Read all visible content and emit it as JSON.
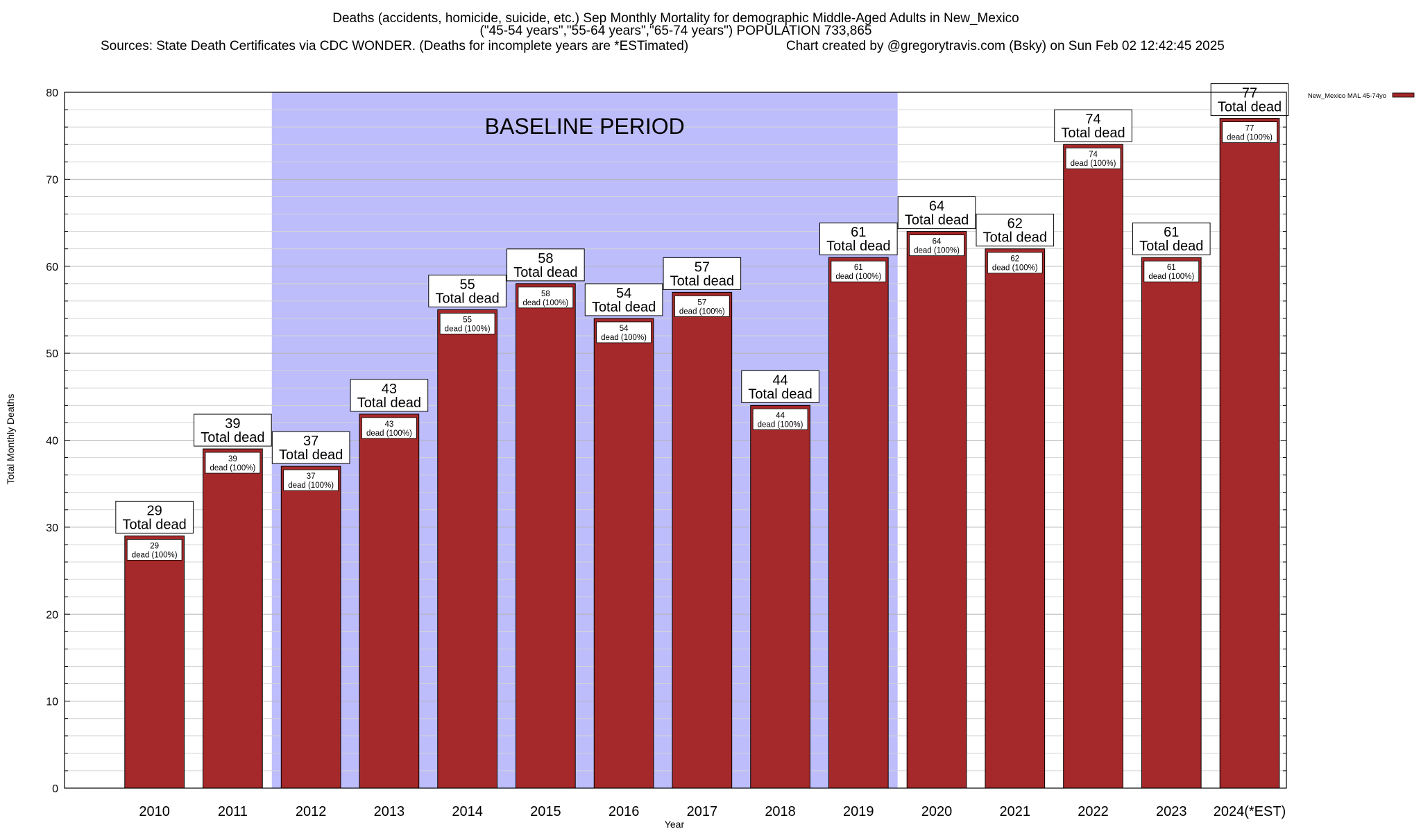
{
  "chart_data": {
    "type": "bar",
    "title_lines": [
      "Deaths (accidents, homicide, suicide, etc.) Sep Monthly Mortality for demographic Middle-Aged Adults in New_Mexico",
      "(\"45-54 years\",\"55-64 years\",\"65-74 years\") POPULATION 733,865"
    ],
    "sources_text": "Sources: State Death Certificates via CDC WONDER. (Deaths for incomplete years are *ESTimated)",
    "credit_text": "Chart created by @gregorytravis.com (Bsky) on Sun Feb 02 12:42:45 2025",
    "xlabel": "Year",
    "ylabel": "Total Monthly Deaths",
    "ylim": [
      0,
      80
    ],
    "yticks": [
      0,
      10,
      20,
      30,
      40,
      50,
      60,
      70,
      80
    ],
    "categories": [
      "2010",
      "2011",
      "2012",
      "2013",
      "2014",
      "2015",
      "2016",
      "2017",
      "2018",
      "2019",
      "2020",
      "2021",
      "2022",
      "2023",
      "2024(*EST)"
    ],
    "series": [
      {
        "name": "New_Mexico MAL 45-74yo",
        "color": "#a5292a",
        "values": [
          29,
          39,
          37,
          43,
          55,
          58,
          54,
          57,
          44,
          61,
          64,
          62,
          74,
          61,
          77
        ]
      }
    ],
    "total_label_suffix": "Total dead",
    "inner_label_suffix": "dead (100%)",
    "baseline": {
      "label": "BASELINE PERIOD",
      "start": "2012",
      "end": "2019",
      "color": "#bdbdfc"
    },
    "legend_position": "top-right",
    "grid": true
  }
}
